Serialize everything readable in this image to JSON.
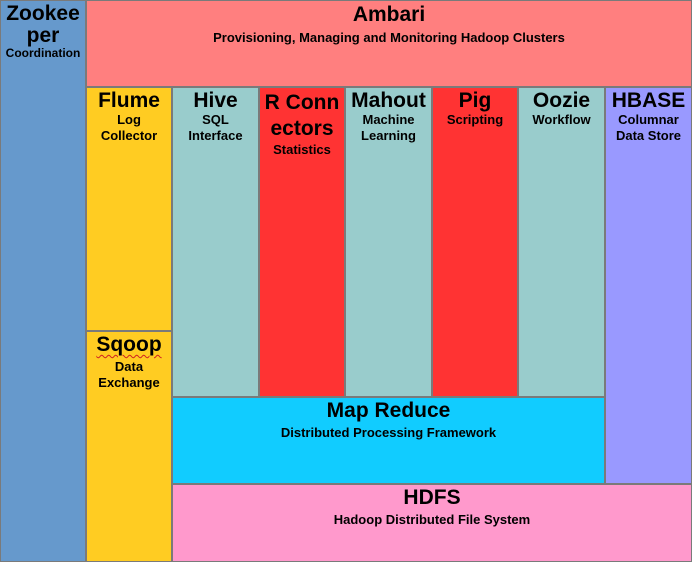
{
  "blocks": {
    "zookeeper": {
      "title": "Zookeeper",
      "subtitle": "Coordination",
      "color": "#6699CC"
    },
    "ambari": {
      "title": "Ambari",
      "subtitle": "Provisioning, Managing and Monitoring Hadoop Clusters",
      "color": "#FF7F7F"
    },
    "flume": {
      "title": "Flume",
      "subtitle": "Log Collector",
      "color": "#FFCC22"
    },
    "sqoop": {
      "title": "Sqoop",
      "subtitle": "Data Exchange",
      "color": "#FFCC22"
    },
    "hive": {
      "title": "Hive",
      "subtitle": "SQL Interface",
      "color": "#99CCCC"
    },
    "r_connectors": {
      "title": "R Connectors",
      "subtitle": "Statistics",
      "color": "#FF3333"
    },
    "mahout": {
      "title": "Mahout",
      "subtitle": "Machine Learning",
      "color": "#99CCCC"
    },
    "pig": {
      "title": "Pig",
      "subtitle": "Scripting",
      "color": "#FF3333"
    },
    "oozie": {
      "title": "Oozie",
      "subtitle": "Workflow",
      "color": "#99CCCC"
    },
    "hbase": {
      "title": "HBASE",
      "subtitle": "Columnar Data Store",
      "color": "#9999FF"
    },
    "mapreduce": {
      "title": "Map Reduce",
      "subtitle": "Distributed Processing Framework",
      "color": "#11CCFF"
    },
    "hdfs": {
      "title": "HDFS",
      "subtitle": "Hadoop Distributed File System",
      "color": "#FF99CC"
    }
  }
}
